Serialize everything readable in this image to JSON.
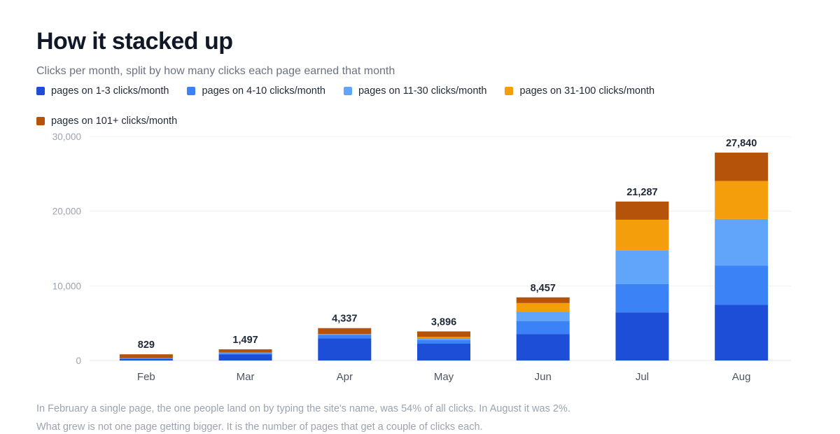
{
  "chart_data": {
    "type": "bar",
    "stacked": true,
    "title": "How it stacked up",
    "subtitle": "Clicks per month, split by how many clicks each page earned that month",
    "categories": [
      "Feb",
      "Mar",
      "Apr",
      "May",
      "Jun",
      "Jul",
      "Aug"
    ],
    "series": [
      {
        "name": "pages on 1-3 clicks/month",
        "color": "#1d4ed8",
        "values": [
          200,
          800,
          2950,
          2250,
          3550,
          6450,
          7450
        ]
      },
      {
        "name": "pages on 4-10 clicks/month",
        "color": "#3b82f6",
        "values": [
          150,
          150,
          500,
          500,
          1700,
          3800,
          5250
        ]
      },
      {
        "name": "pages on 11-30 clicks/month",
        "color": "#60a5fa",
        "values": [
          0,
          100,
          100,
          250,
          1300,
          4500,
          6250
        ]
      },
      {
        "name": "pages on 31-100 clicks/month",
        "color": "#f59e0b",
        "values": [
          0,
          0,
          0,
          150,
          1150,
          4100,
          5100
        ]
      },
      {
        "name": "pages on 101+ clicks/month",
        "color": "#b45309",
        "values": [
          479,
          447,
          787,
          746,
          757,
          2437,
          3790
        ]
      }
    ],
    "totals": [
      "829",
      "1,497",
      "4,337",
      "3,896",
      "8,457",
      "21,287",
      "27,840"
    ],
    "y_ticks": [
      {
        "value": 0,
        "label": "0"
      },
      {
        "value": 10000,
        "label": "10,000"
      },
      {
        "value": 20000,
        "label": "20,000"
      },
      {
        "value": 30000,
        "label": "30,000"
      }
    ],
    "ylim": [
      0,
      30000
    ],
    "grid": true,
    "legend_position": "top-left"
  },
  "footnotes": [
    "In February a single page, the one people land on by typing the site's name, was 54% of all clicks. In August it was 2%.",
    "What grew is not one page getting bigger. It is the number of pages that get a couple of clicks each."
  ]
}
